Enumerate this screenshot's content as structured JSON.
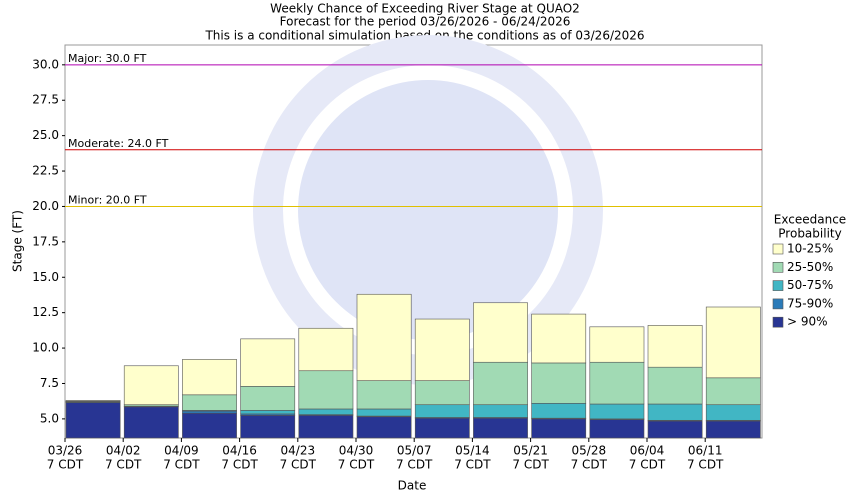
{
  "chart_data": {
    "type": "bar",
    "title": "Weekly Chance of Exceeding River Stage at QUAO2",
    "subtitle": "Forecast for the period 03/26/2026 - 06/24/2026",
    "note": "This is a conditional simulation based on the conditions as of 03/26/2026",
    "x_label": "Date",
    "y_label": "Stage (FT)",
    "categories": [
      "03/26",
      "04/02",
      "04/09",
      "04/16",
      "04/23",
      "04/30",
      "05/07",
      "05/14",
      "05/21",
      "05/28",
      "06/04",
      "06/11"
    ],
    "category_sublabel": "7 CDT",
    "legend_title": [
      "Exceedance",
      "Probability"
    ],
    "series": [
      {
        "name": "> 90%",
        "color": "#283593",
        "values": [
          6.15,
          5.85,
          5.4,
          5.25,
          5.25,
          5.15,
          5.05,
          5.05,
          5.0,
          4.95,
          4.85,
          4.85
        ]
      },
      {
        "name": "75-90%",
        "color": "#2b7bb9",
        "values": [
          6.2,
          5.9,
          5.55,
          5.35,
          5.3,
          5.2,
          5.1,
          5.1,
          5.05,
          5.0,
          4.9,
          4.9
        ]
      },
      {
        "name": "50-75%",
        "color": "#41b6c4",
        "values": [
          6.2,
          5.9,
          5.6,
          5.6,
          5.7,
          5.7,
          6.0,
          6.0,
          6.1,
          6.05,
          6.05,
          6.0
        ]
      },
      {
        "name": "25-50%",
        "color": "#a1dab4",
        "values": [
          6.25,
          6.0,
          6.7,
          7.3,
          8.4,
          7.7,
          7.7,
          9.0,
          8.95,
          9.0,
          8.65,
          7.9
        ]
      },
      {
        "name": "10-25%",
        "color": "#ffffcc",
        "values": [
          6.3,
          8.75,
          9.2,
          10.65,
          11.4,
          13.8,
          12.05,
          13.2,
          12.4,
          11.5,
          11.6,
          12.9
        ]
      }
    ],
    "thresholds": [
      {
        "label": "Major: 30.0 FT",
        "value": 30,
        "color": "#b000b0"
      },
      {
        "label": "Moderate: 24.0 FT",
        "value": 24,
        "color": "#d00000"
      },
      {
        "label": "Minor: 20.0 FT",
        "value": 20,
        "color": "#e0c000"
      }
    ],
    "ylim": [
      3.65,
      31.4
    ],
    "yticks": [
      {
        "value": 5,
        "label": "5.0"
      },
      {
        "value": 7.5,
        "label": "7.5"
      },
      {
        "value": 10,
        "label": "10.0"
      },
      {
        "value": 12.5,
        "label": "12.5"
      },
      {
        "value": 15,
        "label": "15.0"
      },
      {
        "value": 17.5,
        "label": "17.5"
      },
      {
        "value": 20,
        "label": "20.0"
      },
      {
        "value": 22.5,
        "label": "22.5"
      },
      {
        "value": 25,
        "label": "25.0"
      },
      {
        "value": 27.5,
        "label": "27.5"
      },
      {
        "value": 30,
        "label": "30.0"
      }
    ],
    "grid": false
  }
}
